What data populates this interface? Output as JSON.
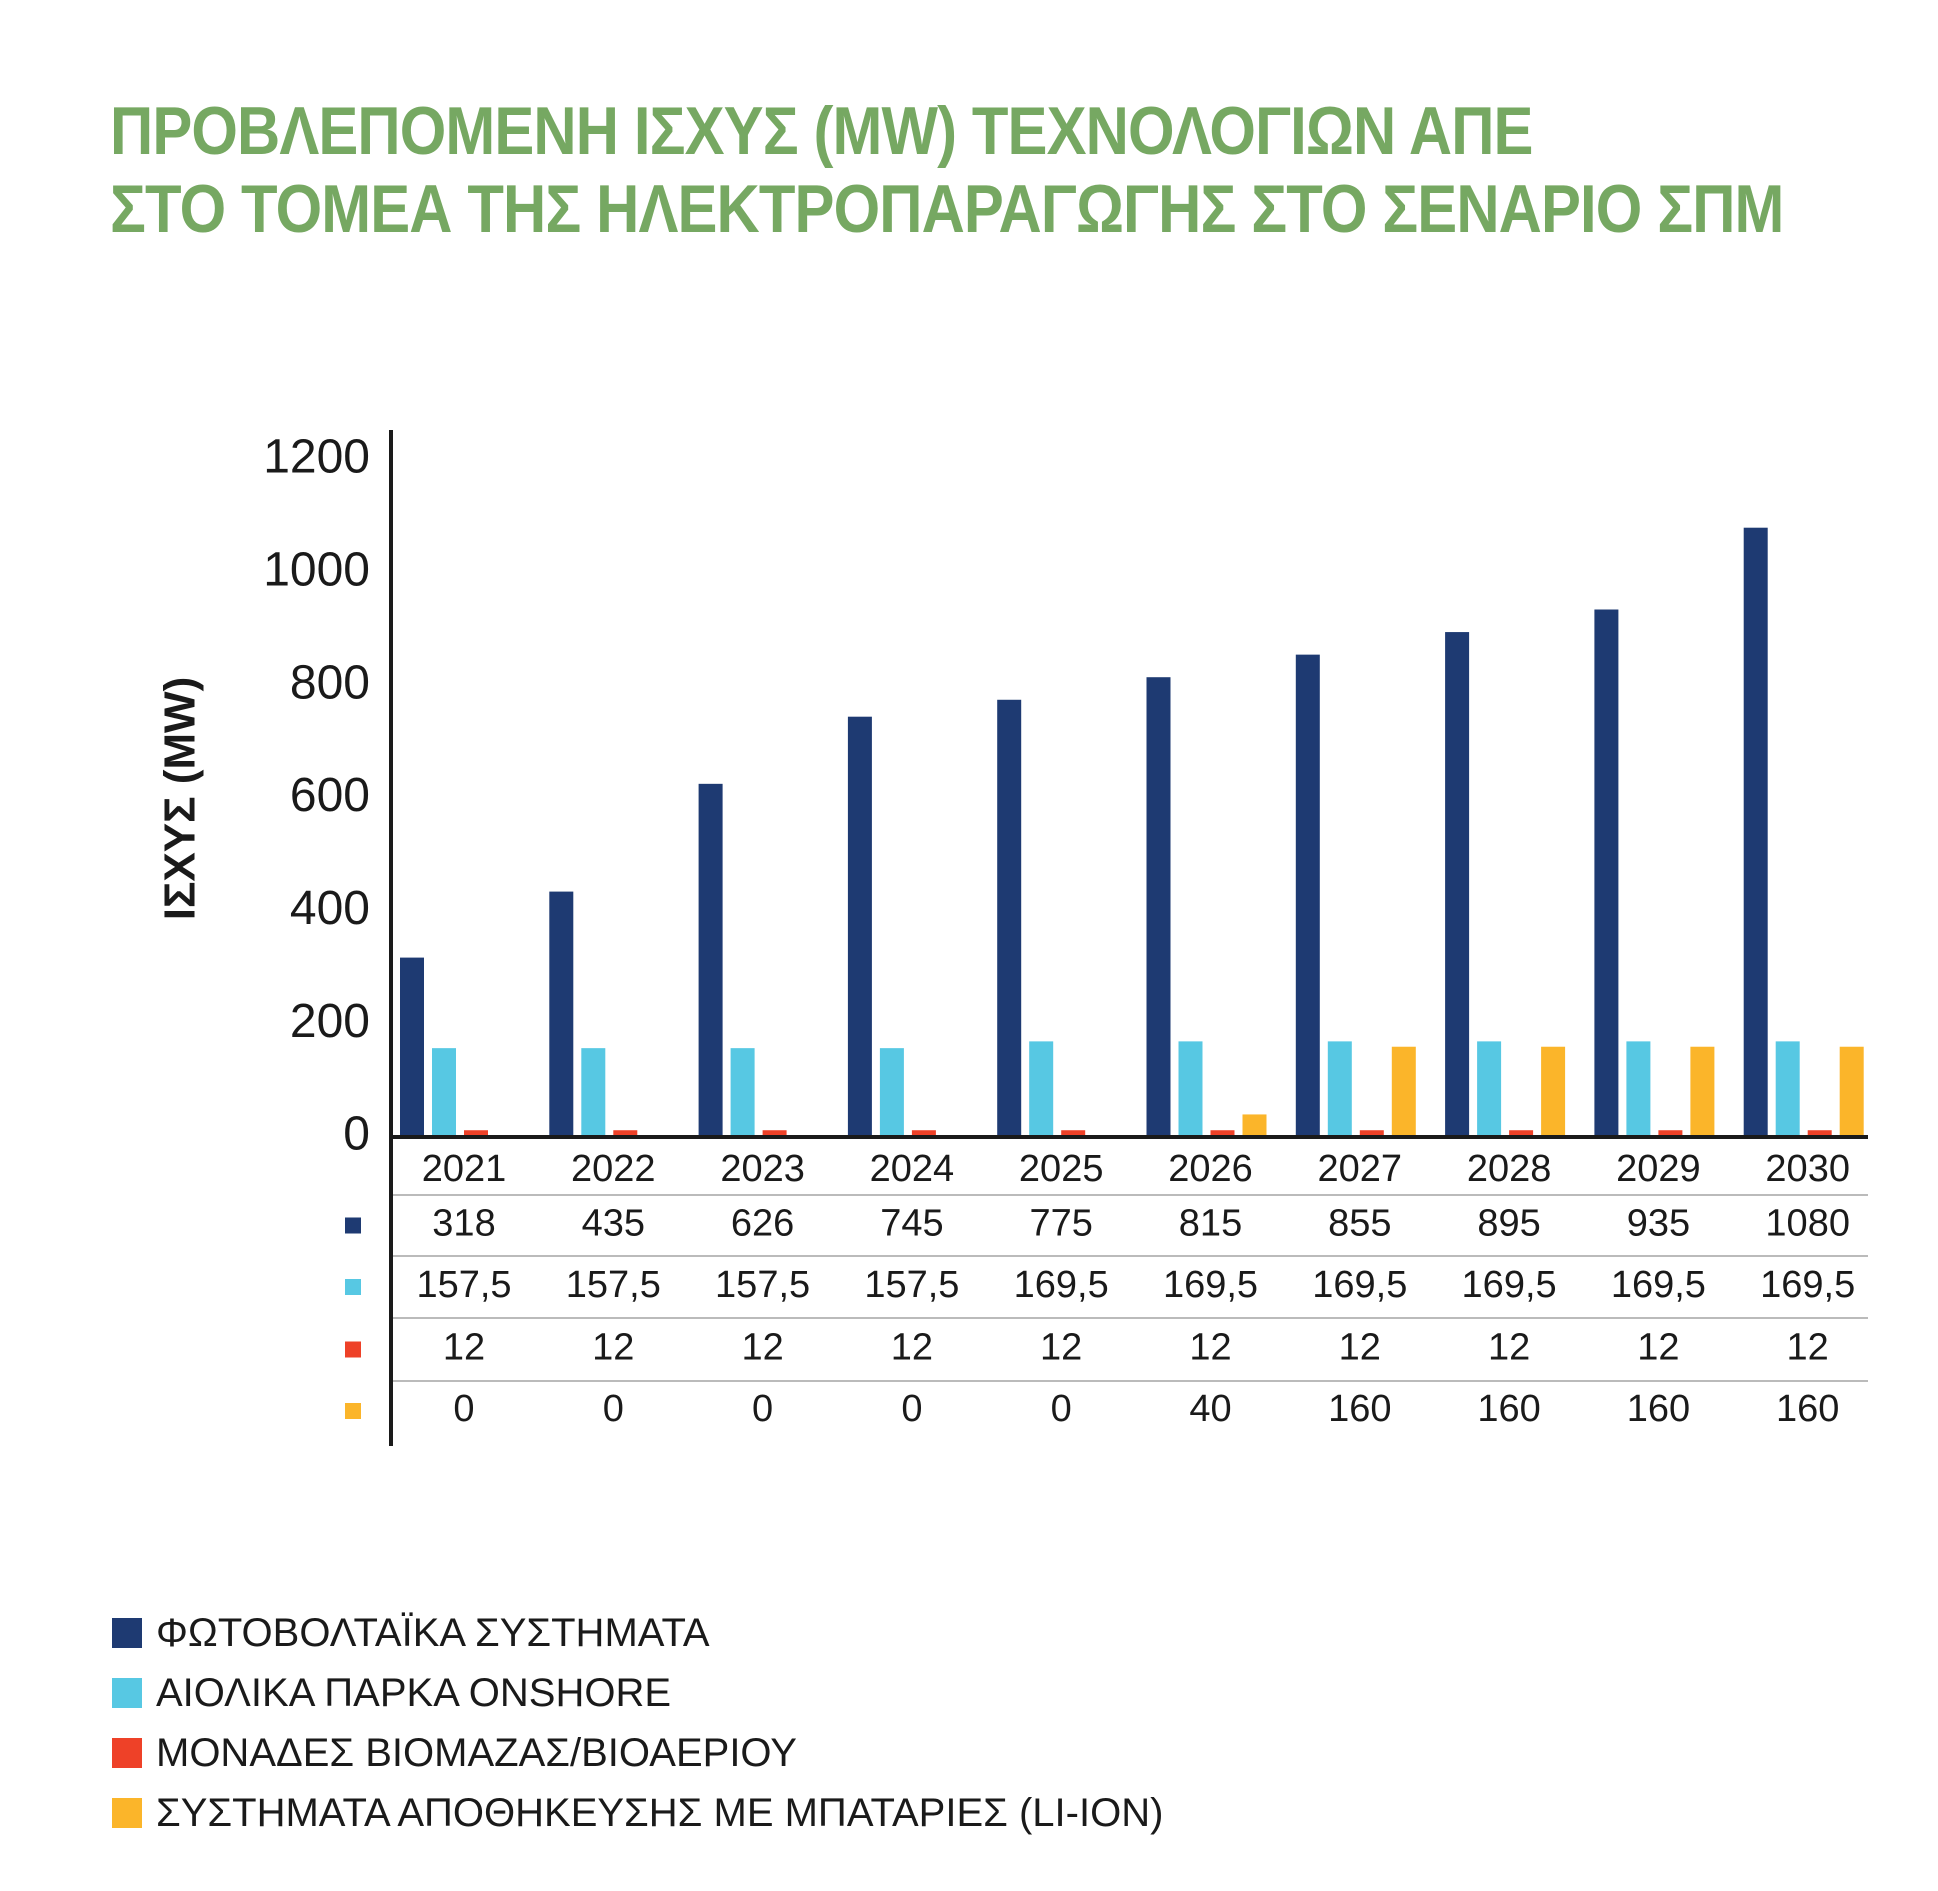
{
  "title_lines": [
    "ΠΡΟΒΛΕΠΟΜΕΝΗ ΙΣΧΥΣ (MW) ΤΕΧΝΟΛΟΓΙΩΝ ΑΠΕ",
    "ΣΤΟ ΤΟΜΕΑ ΤΗΣ ΗΛΕΚΤΡΟΠΑΡΑΓΩΓΗΣ ΣΤΟ ΣΕΝΑΡΙΟ ΣΠΜ"
  ],
  "colors": {
    "title": "#76a862",
    "axis": "#1a1a1a",
    "grid_rows": "#bbbbbb"
  },
  "chart_data": {
    "type": "bar",
    "title": "ΠΡΟΒΛΕΠΟΜΕΝΗ ΙΣΧΥΣ (MW) ΤΕΧΝΟΛΟΓΙΩΝ ΑΠΕ ΣΤΟ ΤΟΜΕΑ ΤΗΣ ΗΛΕΚΤΡΟΠΑΡΑΓΩΓΗΣ ΣΤΟ ΣΕΝΑΡΙΟ ΣΠΜ",
    "ylabel": "ΙΣΧΥΣ (MW)",
    "xlabel": "",
    "ylim": [
      0,
      1200
    ],
    "yticks": [
      "0",
      "200",
      "400",
      "600",
      "800",
      "1000",
      "1200"
    ],
    "grid": false,
    "legend_position": "bottom-left",
    "categories": [
      "2021",
      "2022",
      "2023",
      "2024",
      "2025",
      "2026",
      "2027",
      "2028",
      "2029",
      "2030"
    ],
    "series": [
      {
        "name": "ΦΩΤΟΒΟΛΤΑΪΚΑ ΣΥΣΤΗΜΑΤΑ",
        "color": "#1e3a72",
        "values": [
          318,
          435,
          626,
          745,
          775,
          815,
          855,
          895,
          935,
          1080
        ],
        "labels": [
          "318",
          "435",
          "626",
          "745",
          "775",
          "815",
          "855",
          "895",
          "935",
          "1080"
        ]
      },
      {
        "name": "ΑΙΟΛΙΚΑ ΠΑΡΚΑ ONSHORE",
        "color": "#57c8e3",
        "values": [
          157.5,
          157.5,
          157.5,
          157.5,
          169.5,
          169.5,
          169.5,
          169.5,
          169.5,
          169.5
        ],
        "labels": [
          "157,5",
          "157,5",
          "157,5",
          "157,5",
          "169,5",
          "169,5",
          "169,5",
          "169,5",
          "169,5",
          "169,5"
        ]
      },
      {
        "name": "ΜΟΝΑΔΕΣ ΒΙΟΜΑΖΑΣ/ΒΙΟΑΕΡΙΟΥ",
        "color": "#ee4128",
        "values": [
          12,
          12,
          12,
          12,
          12,
          12,
          12,
          12,
          12,
          12
        ],
        "labels": [
          "12",
          "12",
          "12",
          "12",
          "12",
          "12",
          "12",
          "12",
          "12",
          "12"
        ]
      },
      {
        "name": "ΣΥΣΤΗΜΑΤΑ ΑΠΟΘΗΚΕΥΣΗΣ ΜΕ ΜΠΑΤΑΡΙΕΣ (LI-ION)",
        "color": "#fbb52a",
        "values": [
          0,
          0,
          0,
          0,
          0,
          40,
          160,
          160,
          160,
          160
        ],
        "labels": [
          "0",
          "0",
          "0",
          "0",
          "0",
          "40",
          "160",
          "160",
          "160",
          "160"
        ]
      }
    ]
  }
}
